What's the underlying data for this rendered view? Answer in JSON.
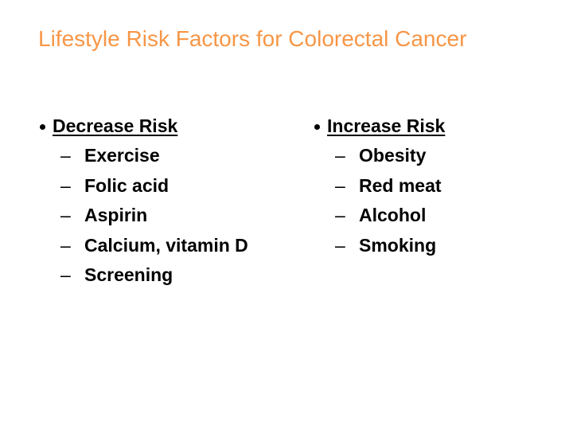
{
  "slide": {
    "title": "Lifestyle Risk Factors for Colorectal Cancer",
    "title_color": "#f79646"
  },
  "left_column": {
    "heading": "Decrease Risk",
    "items": [
      "Exercise",
      "Folic acid",
      "Aspirin",
      "Calcium, vitamin D",
      "Screening"
    ]
  },
  "right_column": {
    "heading": "Increase Risk",
    "items": [
      "Obesity",
      "Red meat",
      "Alcohol",
      "Smoking"
    ]
  },
  "sub_bullet_glyph": "–",
  "main_bullet_icon": "bullet-dot-icon"
}
